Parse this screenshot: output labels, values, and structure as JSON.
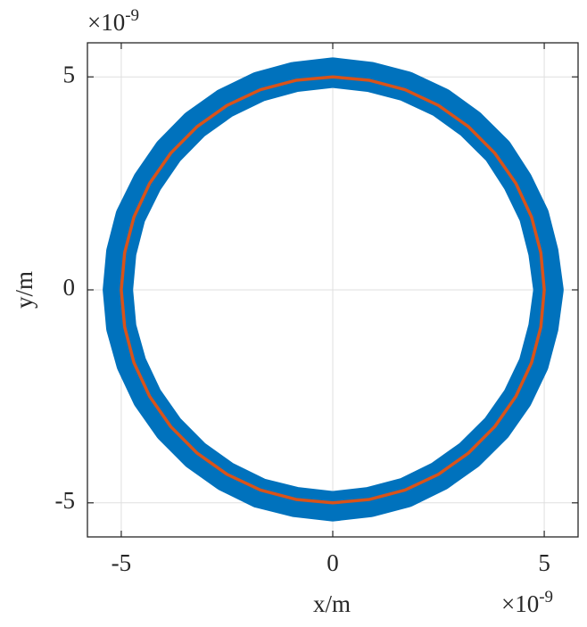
{
  "chart_data": {
    "type": "line",
    "xlabel": "x/m",
    "ylabel": "y/m",
    "x_multiplier": {
      "base": "×10",
      "exponent": "-9"
    },
    "y_multiplier": {
      "base": "×10",
      "exponent": "-9"
    },
    "xlim": [
      -5.8,
      5.8
    ],
    "ylim": [
      -5.8,
      5.8
    ],
    "xticks": [
      -5,
      0,
      5
    ],
    "yticks": [
      -5,
      0,
      5
    ],
    "grid": true,
    "series": [
      {
        "color": "#0072bd",
        "x": [
          5.1,
          4.98,
          4.76,
          4.37,
          3.9,
          3.25,
          2.55,
          1.73,
          0.88,
          0,
          -0.89,
          -1.74,
          -2.55,
          -3.26,
          -3.88,
          -4.38,
          -4.78,
          -5.0,
          -5.08,
          -5.0,
          -4.76,
          -4.38,
          -3.87,
          -3.24,
          -2.53,
          -1.73,
          -0.88,
          0,
          0.88,
          1.72,
          2.52,
          3.23,
          3.87,
          4.37,
          4.75,
          4.98,
          5.1
        ],
        "y": [
          0,
          0.88,
          1.74,
          2.54,
          3.26,
          3.9,
          4.4,
          4.78,
          5.0,
          5.1,
          5.0,
          4.77,
          4.38,
          3.88,
          3.25,
          2.53,
          1.73,
          0.88,
          0,
          -0.88,
          -1.73,
          -2.53,
          -3.25,
          -3.88,
          -4.38,
          -4.77,
          -4.98,
          -5.08,
          -4.98,
          -4.76,
          -4.37,
          -3.87,
          -3.24,
          -2.53,
          -1.74,
          -0.88,
          0
        ]
      },
      {
        "color": "#d95319",
        "x": [
          5,
          4.92,
          4.7,
          4.33,
          3.83,
          3.21,
          2.5,
          1.71,
          0.87,
          0,
          -0.87,
          -1.71,
          -2.5,
          -3.21,
          -3.83,
          -4.33,
          -4.7,
          -4.92,
          -5,
          -4.92,
          -4.7,
          -4.33,
          -3.83,
          -3.21,
          -2.5,
          -1.71,
          -0.87,
          0,
          0.87,
          1.71,
          2.5,
          3.21,
          3.83,
          4.33,
          4.7,
          4.92,
          5
        ],
        "y": [
          0,
          0.87,
          1.71,
          2.5,
          3.21,
          3.83,
          4.33,
          4.7,
          4.92,
          5,
          4.92,
          4.7,
          4.33,
          3.83,
          3.21,
          2.5,
          1.71,
          0.87,
          0,
          -0.87,
          -1.71,
          -2.5,
          -3.21,
          -3.83,
          -4.33,
          -4.7,
          -4.92,
          -5,
          -4.92,
          -4.7,
          -4.33,
          -3.83,
          -3.21,
          -2.5,
          -1.71,
          -0.87,
          0
        ]
      }
    ]
  }
}
